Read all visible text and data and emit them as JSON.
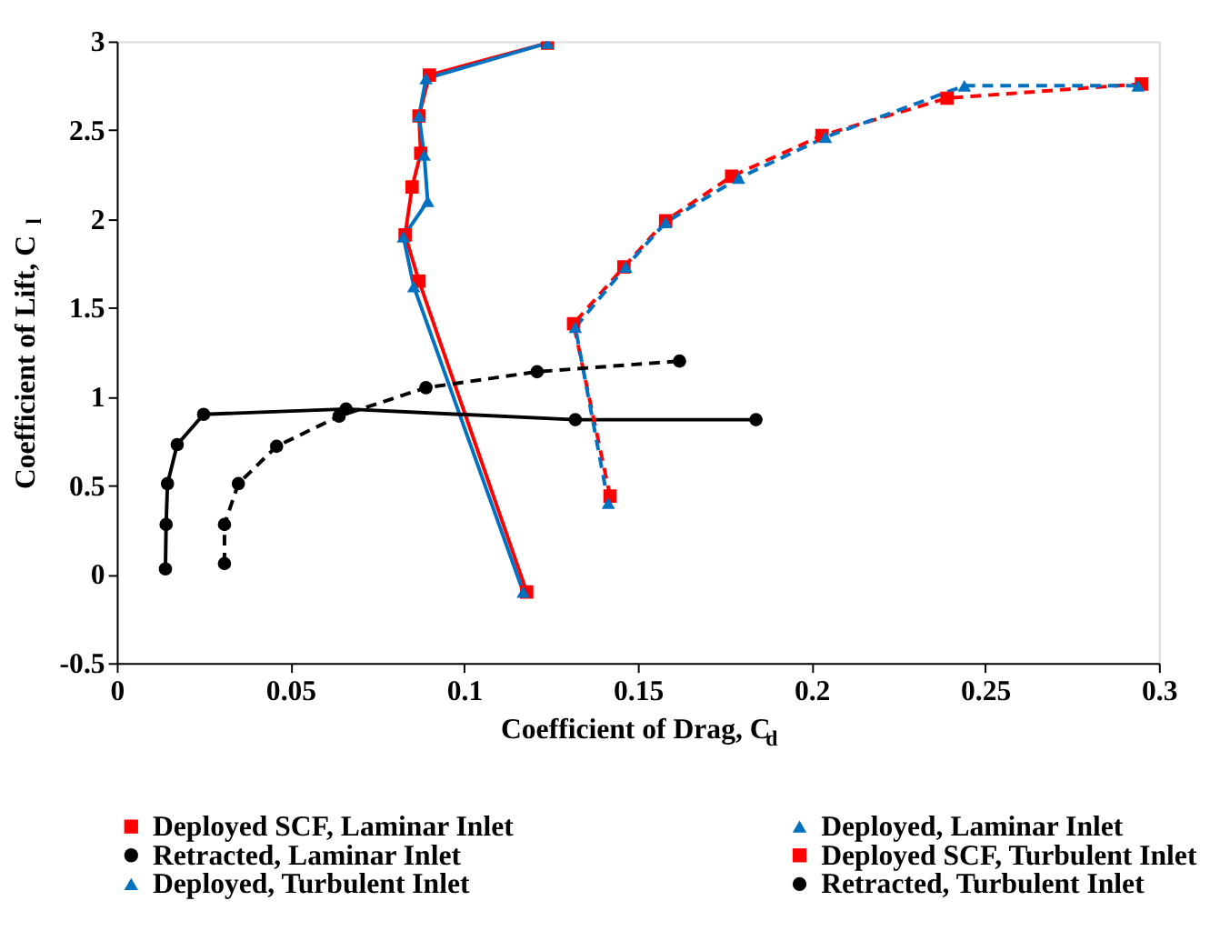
{
  "chart_data": {
    "type": "line",
    "xlabel": "Coefficient of Drag, C$_{d}$",
    "ylabel": "Coefficient of Lift, C$_{l}$",
    "xlim": [
      0,
      0.3
    ],
    "xticks": [
      0,
      0.05,
      0.1,
      0.15,
      0.2,
      0.25,
      0.3
    ],
    "ylim": [
      -0.5,
      3
    ],
    "yticks": [
      -0.5,
      0,
      0.5,
      1,
      1.5,
      2,
      2.5,
      3
    ],
    "grid": false,
    "legend": "bottom",
    "series": [
      {
        "name": "Deployed SCF, Laminar Inlet",
        "color": "#ff0000",
        "marker": "square",
        "line_style": "solid",
        "x": [
          0.118,
          0.087,
          0.083,
          0.085,
          0.0875,
          0.087,
          0.09,
          0.124
        ],
        "values": [
          -0.1,
          1.65,
          1.91,
          2.18,
          2.37,
          2.58,
          2.81,
          2.99
        ]
      },
      {
        "name": "Deployed, Laminar Inlet",
        "color": "#0070c0",
        "marker": "triangle",
        "line_style": "solid",
        "x": [
          0.117,
          0.0855,
          0.0825,
          0.0895,
          0.0885,
          0.087,
          0.089,
          0.124
        ],
        "values": [
          -0.1,
          1.62,
          1.9,
          2.1,
          2.36,
          2.58,
          2.79,
          2.99
        ]
      },
      {
        "name": "Retracted, Laminar Inlet",
        "color": "#000000",
        "marker": "circle",
        "line_style": "solid",
        "x": [
          0.014,
          0.0142,
          0.0146,
          0.0174,
          0.025,
          0.066,
          0.132,
          0.184
        ],
        "values": [
          0.03,
          0.28,
          0.51,
          0.73,
          0.9,
          0.93,
          0.87,
          0.87
        ]
      },
      {
        "name": "Deployed SCF, Turbulent Inlet",
        "color": "#ff0000",
        "marker": "square",
        "line_style": "dashed",
        "x": [
          0.142,
          0.1315,
          0.146,
          0.158,
          0.177,
          0.203,
          0.239,
          0.295
        ],
        "values": [
          0.44,
          1.41,
          1.73,
          1.99,
          2.24,
          2.47,
          2.68,
          2.76
        ]
      },
      {
        "name": "Deployed, Turbulent Inlet",
        "color": "#0070c0",
        "marker": "triangle",
        "line_style": "dashed",
        "x": [
          0.1415,
          0.132,
          0.1465,
          0.158,
          0.179,
          0.204,
          0.244,
          0.294
        ],
        "values": [
          0.4,
          1.39,
          1.73,
          1.98,
          2.23,
          2.46,
          2.75,
          2.75
        ]
      },
      {
        "name": "Retracted, Turbulent Inlet",
        "color": "#000000",
        "marker": "circle",
        "line_style": "dashed",
        "x": [
          0.031,
          0.031,
          0.035,
          0.046,
          0.064,
          0.089,
          0.121,
          0.162
        ],
        "values": [
          0.06,
          0.28,
          0.51,
          0.72,
          0.89,
          1.05,
          1.14,
          1.2
        ]
      }
    ]
  }
}
